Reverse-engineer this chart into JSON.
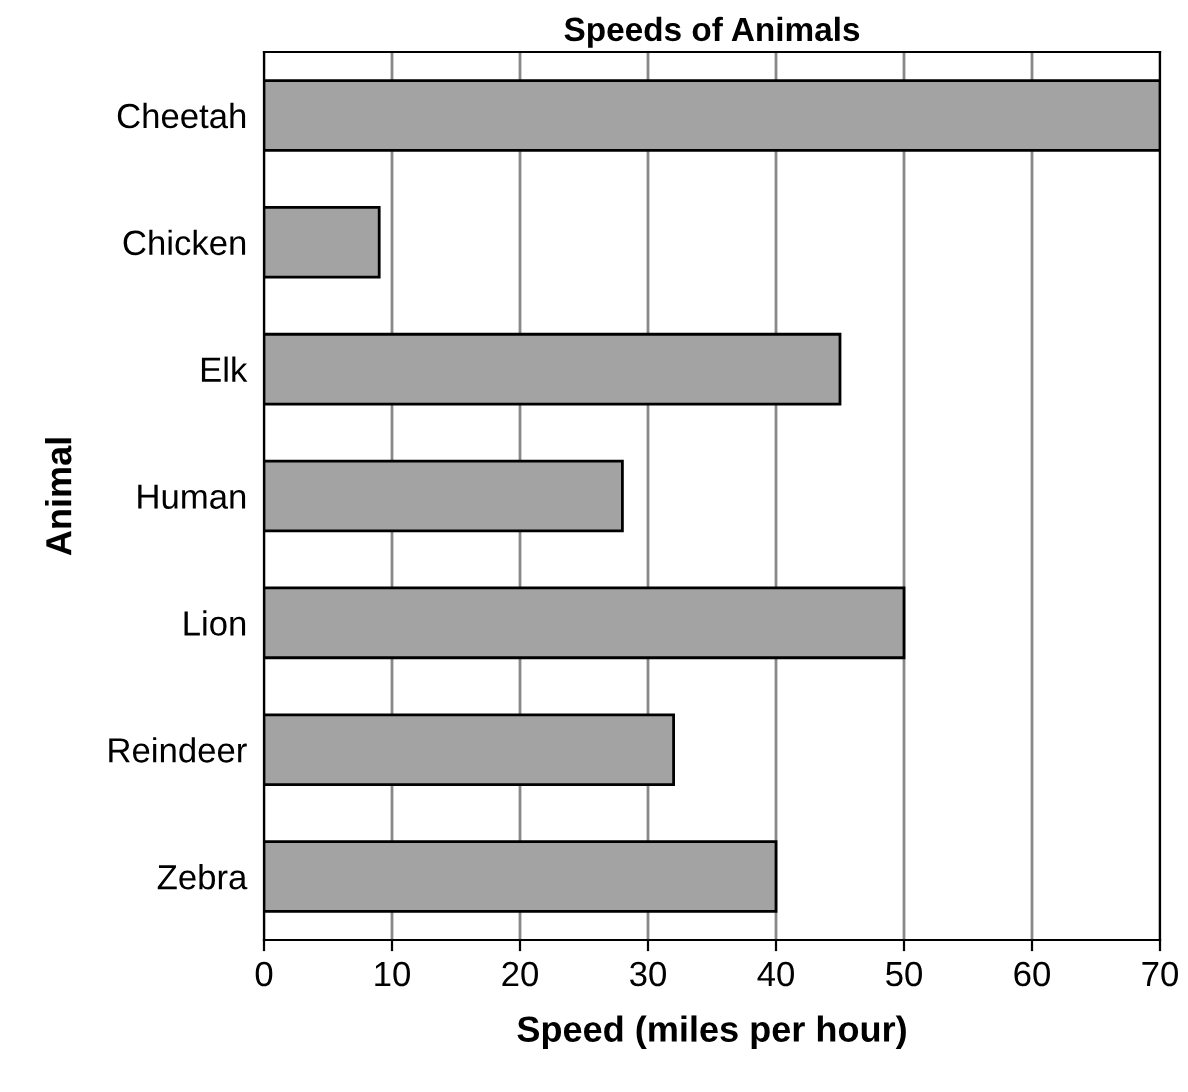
{
  "chart_data": {
    "type": "bar",
    "orientation": "horizontal",
    "title": "Speeds of Animals",
    "xlabel": "Speed (miles per hour)",
    "ylabel": "Animal",
    "categories": [
      "Cheetah",
      "Chicken",
      "Elk",
      "Human",
      "Lion",
      "Reindeer",
      "Zebra"
    ],
    "values": [
      70,
      9,
      45,
      28,
      50,
      32,
      40
    ],
    "color": "#a3a3a3",
    "xlim": [
      0,
      70
    ],
    "xticks": [
      0,
      10,
      20,
      30,
      40,
      50,
      60,
      70
    ],
    "grid": "x"
  }
}
